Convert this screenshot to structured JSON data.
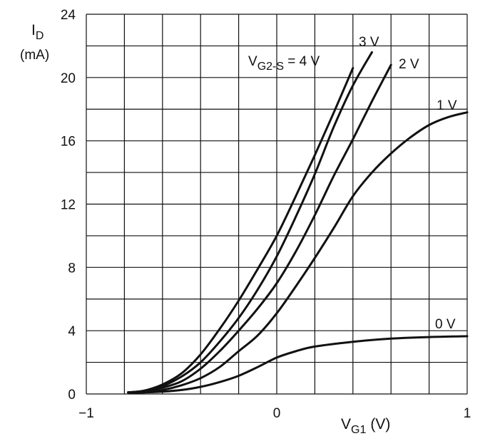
{
  "chart_data": {
    "type": "line",
    "ylabel": {
      "main": "I",
      "sub": "D",
      "unit": "(mA)"
    },
    "xlabel": {
      "main": "V",
      "sub": "G1",
      "unit": "(V)"
    },
    "xlim": [
      -1,
      1
    ],
    "ylim": [
      0,
      24
    ],
    "x_ticks": [
      -1,
      0,
      1
    ],
    "x_tick_labels": [
      "−1",
      "0",
      "1"
    ],
    "y_ticks": [
      0,
      4,
      8,
      12,
      16,
      20,
      24
    ],
    "y_tick_labels": [
      "0",
      "4",
      "8",
      "12",
      "16",
      "20",
      "24"
    ],
    "grid": true,
    "legend_param": {
      "main": "V",
      "sub": "G2-S",
      "suffix": " = 4 V"
    },
    "series": [
      {
        "name": "4 V",
        "label": "",
        "x": [
          -0.78,
          -0.7,
          -0.6,
          -0.5,
          -0.4,
          -0.3,
          -0.2,
          -0.1,
          0.0,
          0.1,
          0.2,
          0.3,
          0.4
        ],
        "y": [
          0.1,
          0.2,
          0.6,
          1.3,
          2.5,
          4.1,
          5.9,
          7.9,
          10.0,
          12.5,
          15.1,
          17.8,
          20.6
        ]
      },
      {
        "name": "3 V",
        "label": "3 V",
        "x": [
          -0.78,
          -0.7,
          -0.6,
          -0.5,
          -0.4,
          -0.3,
          -0.2,
          -0.1,
          0.0,
          0.1,
          0.2,
          0.3,
          0.4,
          0.5
        ],
        "y": [
          0.1,
          0.2,
          0.5,
          1.1,
          2.0,
          3.3,
          4.8,
          6.6,
          8.7,
          11.2,
          13.9,
          16.9,
          19.5,
          21.6
        ]
      },
      {
        "name": "2 V",
        "label": "2 V",
        "x": [
          -0.78,
          -0.7,
          -0.6,
          -0.5,
          -0.4,
          -0.3,
          -0.2,
          -0.1,
          0.0,
          0.1,
          0.2,
          0.3,
          0.4,
          0.5,
          0.6
        ],
        "y": [
          0.1,
          0.15,
          0.4,
          0.8,
          1.6,
          2.7,
          4.0,
          5.4,
          7.0,
          9.0,
          11.3,
          13.8,
          16.1,
          18.5,
          20.8
        ]
      },
      {
        "name": "1 V",
        "label": "1 V",
        "x": [
          -0.78,
          -0.7,
          -0.6,
          -0.5,
          -0.4,
          -0.3,
          -0.2,
          -0.1,
          0.0,
          0.1,
          0.2,
          0.3,
          0.4,
          0.5,
          0.6,
          0.7,
          0.8,
          0.9,
          1.0
        ],
        "y": [
          0.1,
          0.1,
          0.25,
          0.55,
          1.0,
          1.7,
          2.7,
          3.7,
          5.1,
          6.8,
          8.6,
          10.5,
          12.5,
          14.0,
          15.2,
          16.2,
          17.0,
          17.5,
          17.8
        ]
      },
      {
        "name": "0 V",
        "label": "0 V",
        "x": [
          -0.78,
          -0.7,
          -0.6,
          -0.5,
          -0.4,
          -0.3,
          -0.2,
          -0.1,
          0.0,
          0.1,
          0.2,
          0.4,
          0.6,
          0.8,
          1.0
        ],
        "y": [
          0.1,
          0.1,
          0.15,
          0.25,
          0.45,
          0.75,
          1.15,
          1.7,
          2.3,
          2.7,
          3.0,
          3.3,
          3.5,
          3.6,
          3.65
        ]
      }
    ]
  }
}
